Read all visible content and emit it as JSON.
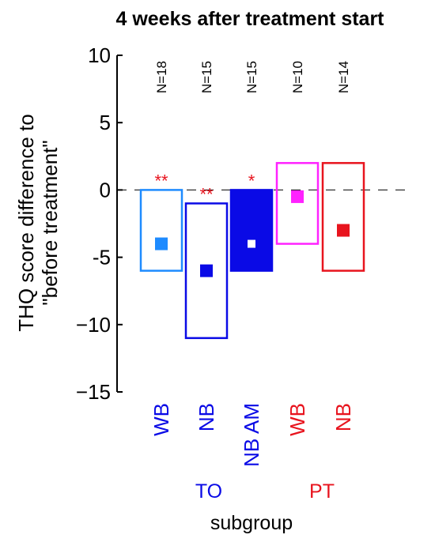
{
  "chart_data": {
    "type": "box",
    "title": "4 weeks after treatment start",
    "ylabel_line1": "THQ score difference to",
    "ylabel_line2": "\"before treatment\"",
    "xlabel": "subgroup",
    "ylim": [
      -15,
      10
    ],
    "yticks": [
      -15,
      -10,
      -5,
      0,
      5,
      10
    ],
    "ytick_labels": [
      "−15",
      "−10",
      "-5",
      "0",
      "5",
      "10"
    ],
    "reference_line": 0,
    "groups": [
      {
        "label": "WB",
        "group": "TO",
        "n_label": "N=18",
        "low": -6,
        "high": 0,
        "median": -4,
        "filled": false,
        "color": "#1e8bff",
        "marker_color": "#1e8bff",
        "label_color": "#0a0ae6",
        "significance": "**"
      },
      {
        "label": "NB",
        "group": "TO",
        "n_label": "N=15",
        "low": -11,
        "high": -1,
        "median": -6,
        "filled": false,
        "color": "#0a0ae6",
        "marker_color": "#0a0ae6",
        "label_color": "#0a0ae6",
        "significance": "**"
      },
      {
        "label": "NB AM",
        "group": "TO",
        "n_label": "N=15",
        "low": -6,
        "high": 0,
        "median": -4,
        "filled": true,
        "color": "#0a0ae6",
        "marker_color": "#ffffff",
        "label_color": "#0a0ae6",
        "significance": "*"
      },
      {
        "label": "WB",
        "group": "PT",
        "n_label": "N=10",
        "low": -4,
        "high": 2,
        "median": -0.5,
        "filled": false,
        "color": "#ff22ff",
        "marker_color": "#ff22ff",
        "label_color": "#e8141e",
        "significance": ""
      },
      {
        "label": "NB",
        "group": "PT",
        "n_label": "N=14",
        "low": -6,
        "high": 2,
        "median": -3,
        "filled": false,
        "color": "#e8141e",
        "marker_color": "#e8141e",
        "label_color": "#e8141e",
        "significance": ""
      }
    ],
    "group_labels": [
      {
        "label": "TO",
        "color": "#0a0ae6"
      },
      {
        "label": "PT",
        "color": "#e8141e"
      }
    ],
    "significance_color": "#e8141e"
  }
}
